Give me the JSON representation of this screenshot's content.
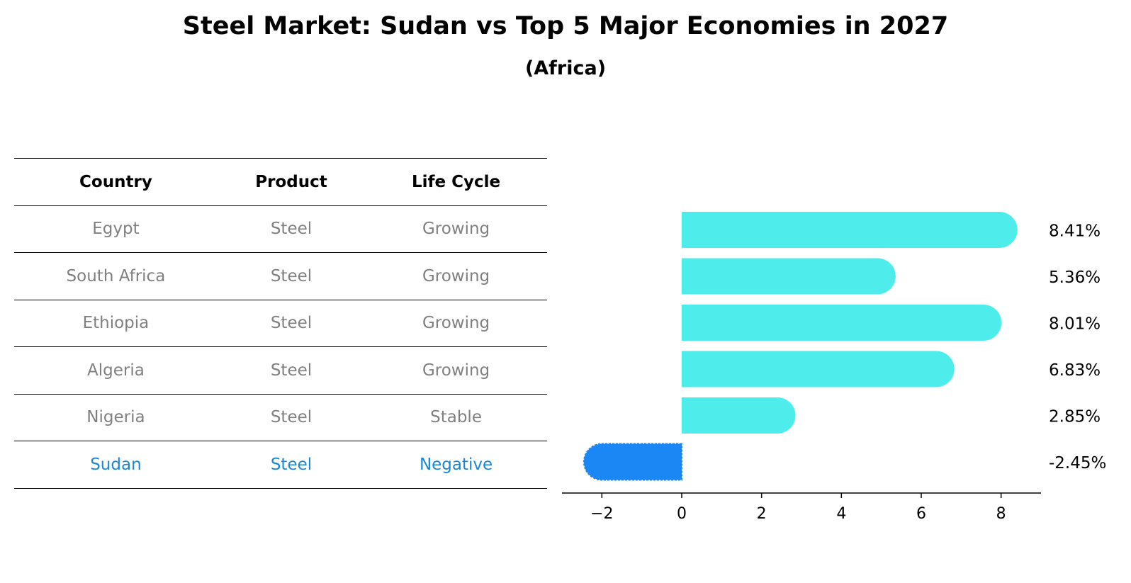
{
  "title": "Steel Market: Sudan vs Top 5 Major Economies in 2027",
  "subtitle": "(Africa)",
  "table": {
    "headers": [
      "Country",
      "Product",
      "Life Cycle"
    ],
    "rows": [
      [
        "Egypt",
        "Steel",
        "Growing"
      ],
      [
        "South Africa",
        "Steel",
        "Growing"
      ],
      [
        "Ethiopia",
        "Steel",
        "Growing"
      ],
      [
        "Algeria",
        "Steel",
        "Growing"
      ],
      [
        "Nigeria",
        "Steel",
        "Stable"
      ],
      [
        "Sudan",
        "Steel",
        "Negative"
      ]
    ],
    "highlight_row": 5
  },
  "colors": {
    "bar": "#4eeceb",
    "highlight": "#1a87f5",
    "highlight_text": "#1a87d6",
    "muted_text": "#808080"
  },
  "chart_data": {
    "type": "bar",
    "orientation": "horizontal",
    "categories": [
      "Egypt",
      "South Africa",
      "Ethiopia",
      "Algeria",
      "Nigeria",
      "Sudan"
    ],
    "values": [
      8.41,
      5.36,
      8.01,
      6.83,
      2.85,
      -2.45
    ],
    "value_labels": [
      "8.41%",
      "5.36%",
      "8.01%",
      "6.83%",
      "2.85%",
      "-2.45%"
    ],
    "xticks": [
      -2,
      0,
      2,
      4,
      6,
      8
    ],
    "xtick_labels": [
      "−2",
      "0",
      "2",
      "4",
      "6",
      "8"
    ],
    "xlim": [
      -3.0,
      9.0
    ],
    "highlight_index": 5,
    "grid": false
  }
}
